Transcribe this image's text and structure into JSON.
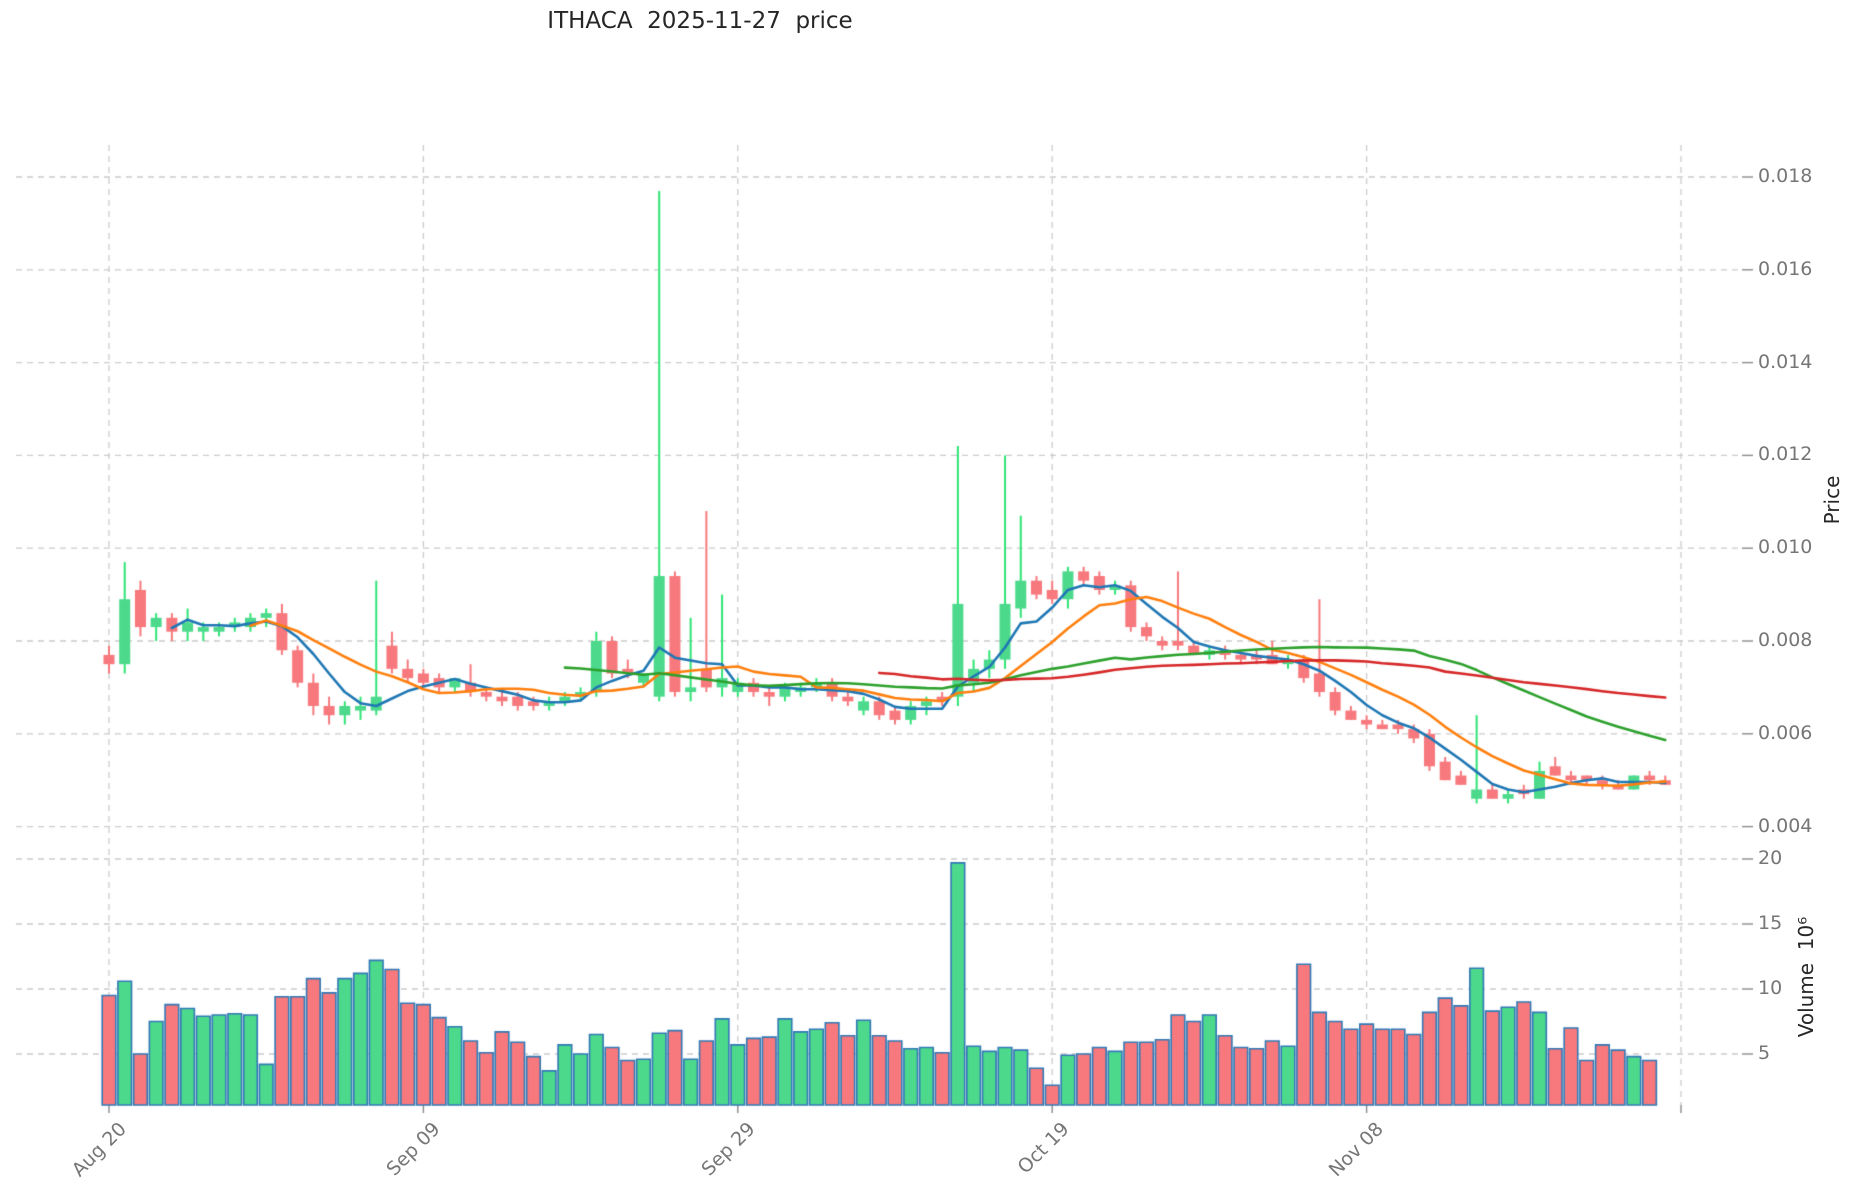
{
  "title": "ITHACA  2025-11-27  price",
  "axes": {
    "price_label": "Price",
    "volume_label": "Volume  10⁶",
    "price_tick_labels": [
      "0.018",
      "0.016",
      "0.014",
      "0.012",
      "0.010",
      "0.008",
      "0.006",
      "0.004"
    ],
    "price_tick_values": [
      0.018,
      0.016,
      0.014,
      0.012,
      0.01,
      0.008,
      0.006,
      0.004
    ],
    "volume_tick_labels": [
      "20",
      "15",
      "10",
      "5"
    ],
    "volume_tick_values": [
      20,
      15,
      10,
      5
    ],
    "x_tick_labels": [
      "Aug 20",
      "Sep 09",
      "Sep 29",
      "Oct 19",
      "Nov 08"
    ],
    "x_tick_day_indices": [
      0,
      20,
      40,
      60,
      80
    ],
    "unlabeled_gridline_day_index": 100
  },
  "chart_data": {
    "type": "candlestick",
    "title": "ITHACA  2025-11-27  price",
    "start_date": "2025-08-20",
    "end_date": "2025-11-27",
    "n_days": 100,
    "price_ylim": [
      0.0035,
      0.0187
    ],
    "volume_ylim_millions": [
      0.9,
      20.8
    ],
    "grid": true,
    "mav_windows": [
      5,
      10,
      30,
      50
    ],
    "ohlc": [
      [
        0.0077,
        0.0079,
        0.0073,
        0.0075
      ],
      [
        0.0075,
        0.0097,
        0.0073,
        0.0089
      ],
      [
        0.0091,
        0.0093,
        0.0081,
        0.0083
      ],
      [
        0.0083,
        0.0086,
        0.008,
        0.0085
      ],
      [
        0.0085,
        0.0086,
        0.008,
        0.0082
      ],
      [
        0.0082,
        0.0087,
        0.008,
        0.0084
      ],
      [
        0.0082,
        0.0084,
        0.008,
        0.0083
      ],
      [
        0.0082,
        0.0084,
        0.0081,
        0.0083
      ],
      [
        0.0083,
        0.0085,
        0.0082,
        0.0084
      ],
      [
        0.0083,
        0.0086,
        0.0082,
        0.0085
      ],
      [
        0.0085,
        0.0087,
        0.0083,
        0.0086
      ],
      [
        0.0086,
        0.0088,
        0.0077,
        0.0078
      ],
      [
        0.0078,
        0.0079,
        0.007,
        0.0071
      ],
      [
        0.0071,
        0.0073,
        0.0064,
        0.0066
      ],
      [
        0.0066,
        0.0068,
        0.0062,
        0.0064
      ],
      [
        0.0064,
        0.0067,
        0.0062,
        0.0066
      ],
      [
        0.0065,
        0.0068,
        0.0063,
        0.0066
      ],
      [
        0.0065,
        0.0093,
        0.0064,
        0.0068
      ],
      [
        0.0079,
        0.0082,
        0.0073,
        0.0074
      ],
      [
        0.0074,
        0.0076,
        0.0071,
        0.0072
      ],
      [
        0.0073,
        0.0074,
        0.007,
        0.0071
      ],
      [
        0.0072,
        0.0073,
        0.0069,
        0.007
      ],
      [
        0.007,
        0.0072,
        0.0069,
        0.0072
      ],
      [
        0.0071,
        0.0075,
        0.0068,
        0.0069
      ],
      [
        0.0069,
        0.007,
        0.0067,
        0.0068
      ],
      [
        0.0068,
        0.0069,
        0.0066,
        0.0067
      ],
      [
        0.0068,
        0.0069,
        0.0065,
        0.0066
      ],
      [
        0.0067,
        0.0068,
        0.0065,
        0.0066
      ],
      [
        0.0066,
        0.0068,
        0.0065,
        0.0067
      ],
      [
        0.0067,
        0.0069,
        0.0066,
        0.0068
      ],
      [
        0.0068,
        0.007,
        0.0067,
        0.0069
      ],
      [
        0.0069,
        0.0082,
        0.0068,
        0.008
      ],
      [
        0.008,
        0.0081,
        0.0072,
        0.0073
      ],
      [
        0.0074,
        0.0076,
        0.0072,
        0.0073
      ],
      [
        0.0071,
        0.0073,
        0.007,
        0.0073
      ],
      [
        0.0068,
        0.0177,
        0.0067,
        0.0094
      ],
      [
        0.0094,
        0.0095,
        0.0068,
        0.0069
      ],
      [
        0.0069,
        0.0085,
        0.0067,
        0.007
      ],
      [
        0.0074,
        0.0108,
        0.0069,
        0.007
      ],
      [
        0.007,
        0.009,
        0.0068,
        0.0072
      ],
      [
        0.0069,
        0.0072,
        0.0068,
        0.0071
      ],
      [
        0.0071,
        0.0072,
        0.0068,
        0.0069
      ],
      [
        0.0069,
        0.007,
        0.0066,
        0.0068
      ],
      [
        0.0068,
        0.0071,
        0.0067,
        0.007
      ],
      [
        0.0069,
        0.0071,
        0.0068,
        0.007
      ],
      [
        0.007,
        0.0072,
        0.0069,
        0.0071
      ],
      [
        0.0071,
        0.0072,
        0.0067,
        0.0068
      ],
      [
        0.0068,
        0.0069,
        0.0066,
        0.0067
      ],
      [
        0.0065,
        0.0068,
        0.0064,
        0.0067
      ],
      [
        0.0067,
        0.0068,
        0.0063,
        0.0064
      ],
      [
        0.0065,
        0.0066,
        0.0062,
        0.0063
      ],
      [
        0.0063,
        0.0067,
        0.0062,
        0.0066
      ],
      [
        0.0066,
        0.0068,
        0.0064,
        0.0067
      ],
      [
        0.0068,
        0.0069,
        0.0066,
        0.0067
      ],
      [
        0.0068,
        0.0122,
        0.0066,
        0.0088
      ],
      [
        0.0071,
        0.0076,
        0.0069,
        0.0074
      ],
      [
        0.0074,
        0.0078,
        0.0072,
        0.0076
      ],
      [
        0.0076,
        0.012,
        0.0074,
        0.0088
      ],
      [
        0.0087,
        0.0107,
        0.0085,
        0.0093
      ],
      [
        0.0093,
        0.0094,
        0.0089,
        0.009
      ],
      [
        0.0091,
        0.0093,
        0.0088,
        0.0089
      ],
      [
        0.0089,
        0.0096,
        0.0087,
        0.0095
      ],
      [
        0.0095,
        0.0096,
        0.0092,
        0.0093
      ],
      [
        0.0094,
        0.0095,
        0.009,
        0.0091
      ],
      [
        0.0091,
        0.0093,
        0.009,
        0.0092
      ],
      [
        0.0092,
        0.0093,
        0.0082,
        0.0083
      ],
      [
        0.0083,
        0.0084,
        0.008,
        0.0081
      ],
      [
        0.008,
        0.0081,
        0.0078,
        0.0079
      ],
      [
        0.008,
        0.0095,
        0.0078,
        0.0079
      ],
      [
        0.0079,
        0.008,
        0.0077,
        0.0077
      ],
      [
        0.0077,
        0.0079,
        0.0076,
        0.0078
      ],
      [
        0.0078,
        0.0079,
        0.0076,
        0.0077
      ],
      [
        0.0077,
        0.0078,
        0.0075,
        0.0076
      ],
      [
        0.0077,
        0.0078,
        0.0075,
        0.0076
      ],
      [
        0.0077,
        0.008,
        0.0075,
        0.0075
      ],
      [
        0.0075,
        0.0077,
        0.0074,
        0.0076
      ],
      [
        0.0076,
        0.0077,
        0.0071,
        0.0072
      ],
      [
        0.0073,
        0.0089,
        0.0068,
        0.0069
      ],
      [
        0.0069,
        0.007,
        0.0064,
        0.0065
      ],
      [
        0.0065,
        0.0066,
        0.0063,
        0.0063
      ],
      [
        0.0063,
        0.0064,
        0.0061,
        0.0062
      ],
      [
        0.0062,
        0.0063,
        0.0061,
        0.0061
      ],
      [
        0.0062,
        0.0063,
        0.006,
        0.0061
      ],
      [
        0.0061,
        0.0062,
        0.0058,
        0.0059
      ],
      [
        0.006,
        0.0061,
        0.0052,
        0.0053
      ],
      [
        0.0054,
        0.0055,
        0.005,
        0.005
      ],
      [
        0.0051,
        0.0052,
        0.0049,
        0.0049
      ],
      [
        0.0046,
        0.0064,
        0.0045,
        0.0048
      ],
      [
        0.0048,
        0.0049,
        0.0046,
        0.0046
      ],
      [
        0.0046,
        0.0048,
        0.0045,
        0.0047
      ],
      [
        0.0048,
        0.0049,
        0.0046,
        0.0047
      ],
      [
        0.0046,
        0.0054,
        0.0046,
        0.0052
      ],
      [
        0.0053,
        0.0055,
        0.0051,
        0.0051
      ],
      [
        0.0051,
        0.0052,
        0.0049,
        0.005
      ],
      [
        0.0051,
        0.0051,
        0.0049,
        0.005
      ],
      [
        0.005,
        0.0051,
        0.0048,
        0.0049
      ],
      [
        0.0049,
        0.005,
        0.0048,
        0.0048
      ],
      [
        0.0048,
        0.0051,
        0.0048,
        0.0051
      ],
      [
        0.0051,
        0.0052,
        0.0049,
        0.005
      ],
      [
        0.005,
        0.0051,
        0.0049,
        0.0049
      ]
    ],
    "volume_millions": [
      9.5,
      10.6,
      5.0,
      7.5,
      8.8,
      8.5,
      7.9,
      8.0,
      8.1,
      8.0,
      4.2,
      9.4,
      9.4,
      10.8,
      9.7,
      10.8,
      11.2,
      12.2,
      11.5,
      8.9,
      8.8,
      7.8,
      7.1,
      6.0,
      5.1,
      6.7,
      5.9,
      4.8,
      3.7,
      5.7,
      5.0,
      6.5,
      5.5,
      4.5,
      4.6,
      6.6,
      6.8,
      4.6,
      6.0,
      7.7,
      5.7,
      6.2,
      6.3,
      7.7,
      6.7,
      6.9,
      7.4,
      6.4,
      7.6,
      6.4,
      6.0,
      5.4,
      5.5,
      5.1,
      19.7,
      5.6,
      5.2,
      5.5,
      5.3,
      3.9,
      2.6,
      4.9,
      5.0,
      5.5,
      5.2,
      5.9,
      5.9,
      6.1,
      8.0,
      7.5,
      8.0,
      6.4,
      5.5,
      5.4,
      6.0,
      5.6,
      11.9,
      8.2,
      7.5,
      6.9,
      7.3,
      6.9,
      6.9,
      6.5,
      8.2,
      9.3,
      8.7,
      11.6,
      8.3,
      8.6,
      9.0,
      8.2,
      5.4,
      7.0,
      4.5,
      5.7,
      5.3,
      4.8,
      4.5,
      0.9
    ]
  },
  "colors": {
    "up": "#4cd98c",
    "down": "#f7797d",
    "wick_up": "#2ee575",
    "wick_down": "#f7797d",
    "volume_edge": "#3179b5",
    "mav": [
      "#1f77b4",
      "#ff7f0e",
      "#2ca02c",
      "#d62728"
    ],
    "grid": "#cccccc",
    "tick_text": "#767676",
    "title_text": "#262626"
  }
}
